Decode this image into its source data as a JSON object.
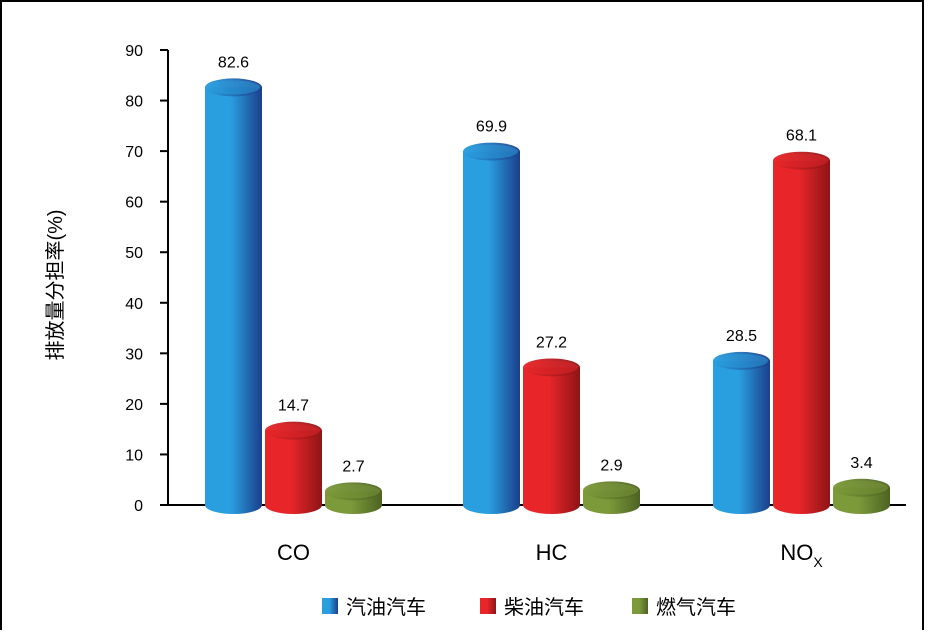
{
  "chart_data": {
    "type": "bar",
    "categories": [
      "CO",
      "HC",
      "NOX"
    ],
    "category_subscripts": [
      "",
      "",
      "X"
    ],
    "category_main": [
      "CO",
      "HC",
      "NO"
    ],
    "series": [
      {
        "name": "汽油汽车",
        "values": [
          82.6,
          69.9,
          28.5
        ],
        "color": "#2a9fe0",
        "color_dark": "#1b3f8a"
      },
      {
        "name": "柴油汽车",
        "values": [
          14.7,
          27.2,
          68.1
        ],
        "color": "#e8262a",
        "color_dark": "#8e1416"
      },
      {
        "name": "燃气汽车",
        "values": [
          2.7,
          2.9,
          3.4
        ],
        "color": "#7c9a3a",
        "color_dark": "#4d6322"
      }
    ],
    "value_labels": [
      [
        "82.6",
        "69.9",
        "28.5"
      ],
      [
        "14.7",
        "27.2",
        "68.1"
      ],
      [
        "2.7",
        "2.9",
        "3.4"
      ]
    ],
    "ylabel": "排放量分担率(%)",
    "xlabel": "",
    "ylim": [
      0,
      90
    ],
    "yticks": [
      "0",
      "10",
      "20",
      "30",
      "40",
      "50",
      "60",
      "70",
      "80",
      "90"
    ],
    "grid": false,
    "legend_position": "bottom"
  }
}
